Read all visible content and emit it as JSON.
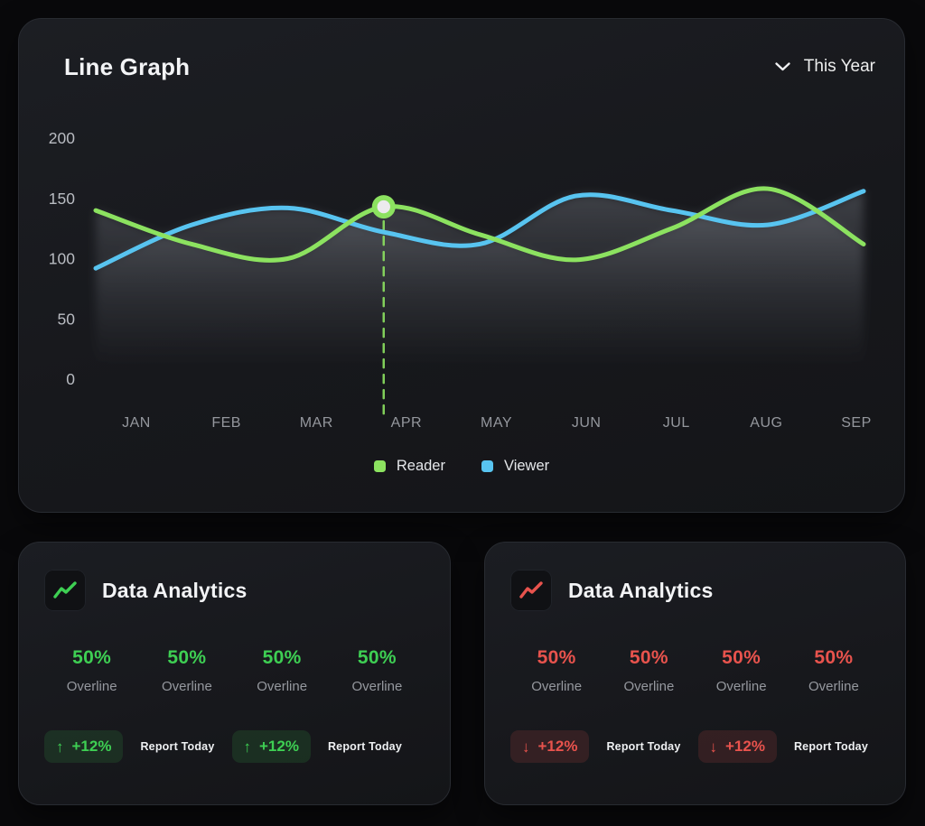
{
  "window": {
    "background": "#09090b"
  },
  "line_card": {
    "title": "Line Graph",
    "period_selector": "This Year",
    "legend": [
      {
        "label": "Reader",
        "color": "#8ce260"
      },
      {
        "label": "Viewer",
        "color": "#58c4f0"
      }
    ]
  },
  "chart_data": {
    "type": "line",
    "x": [
      "JAN",
      "FEB",
      "MAR",
      "APR",
      "MAY",
      "JUN",
      "JUL",
      "AUG",
      "SEP"
    ],
    "series": [
      {
        "name": "Reader",
        "color": "#8ce260",
        "values": [
          140,
          112,
          100,
          143,
          120,
          99,
          125,
          158,
          112
        ]
      },
      {
        "name": "Viewer",
        "color": "#58c4f0",
        "values": [
          92,
          128,
          142,
          122,
          112,
          152,
          140,
          128,
          156
        ]
      }
    ],
    "ylim": [
      0,
      200
    ],
    "yticks": [
      0,
      50,
      100,
      150,
      200
    ],
    "grid": false,
    "legend_position": "bottom",
    "highlight": {
      "series": "Reader",
      "month": "APR",
      "value": 143
    },
    "area_fill": "soft gray gradient under curves",
    "tick_color": "#b9bcc2",
    "month_color": "#94979d"
  },
  "analytics_cards": [
    {
      "title": "Data Analytics",
      "accent": "#3ecf53",
      "badge_bg": "rgba(62,207,83,0.13)",
      "trend": "up",
      "arrow_glyph": "↑",
      "stats": [
        {
          "value": "50%",
          "label": "Overline"
        },
        {
          "value": "50%",
          "label": "Overline"
        },
        {
          "value": "50%",
          "label": "Overline"
        },
        {
          "value": "50%",
          "label": "Overline"
        }
      ],
      "badges": [
        {
          "delta": "+12%",
          "caption": "Report Today"
        },
        {
          "delta": "+12%",
          "caption": "Report Today"
        }
      ]
    },
    {
      "title": "Data Analytics",
      "accent": "#e8534d",
      "badge_bg": "rgba(232,83,77,0.14)",
      "trend": "down",
      "arrow_glyph": "↓",
      "stats": [
        {
          "value": "50%",
          "label": "Overline"
        },
        {
          "value": "50%",
          "label": "Overline"
        },
        {
          "value": "50%",
          "label": "Overline"
        },
        {
          "value": "50%",
          "label": "Overline"
        }
      ],
      "badges": [
        {
          "delta": "+12%",
          "caption": "Report Today"
        },
        {
          "delta": "+12%",
          "caption": "Report Today"
        }
      ]
    }
  ]
}
